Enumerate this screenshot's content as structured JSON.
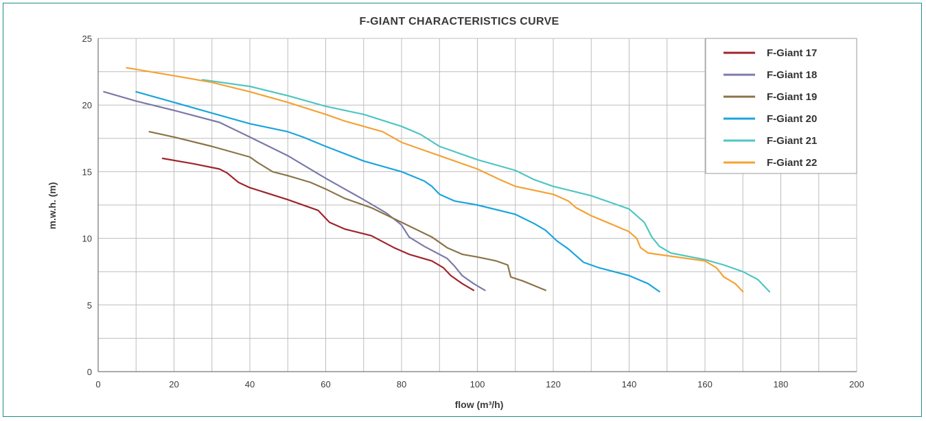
{
  "chart_data": {
    "type": "line",
    "title": "F-GIANT  CHARACTERISTICS CURVE",
    "xlabel": "flow (m³/h)",
    "ylabel": "m.w.h. (m)",
    "xlim": [
      0,
      200
    ],
    "ylim": [
      0,
      25
    ],
    "x_ticks": [
      0,
      20,
      40,
      60,
      80,
      100,
      120,
      140,
      160,
      180,
      200
    ],
    "y_ticks": [
      0,
      5,
      10,
      15,
      20,
      25
    ],
    "grid": true,
    "legend_position": "top-right",
    "series": [
      {
        "name": "F-Giant  17",
        "color": "#a0232b",
        "points": [
          [
            17,
            16
          ],
          [
            25,
            15.6
          ],
          [
            32,
            15.2
          ],
          [
            34,
            14.9
          ],
          [
            37,
            14.2
          ],
          [
            40,
            13.8
          ],
          [
            50,
            12.9
          ],
          [
            58,
            12.1
          ],
          [
            61,
            11.2
          ],
          [
            65,
            10.7
          ],
          [
            72,
            10.2
          ],
          [
            78,
            9.3
          ],
          [
            82,
            8.8
          ],
          [
            88,
            8.3
          ],
          [
            91,
            7.8
          ],
          [
            93,
            7.2
          ],
          [
            96,
            6.6
          ],
          [
            99,
            6.1
          ]
        ]
      },
      {
        "name": "F-Giant  18",
        "color": "#7b79a8",
        "points": [
          [
            1.5,
            21
          ],
          [
            10,
            20.3
          ],
          [
            20,
            19.6
          ],
          [
            32,
            18.7
          ],
          [
            40,
            17.6
          ],
          [
            50,
            16.2
          ],
          [
            60,
            14.5
          ],
          [
            70,
            12.9
          ],
          [
            76,
            11.9
          ],
          [
            80,
            11
          ],
          [
            82,
            10.1
          ],
          [
            86,
            9.4
          ],
          [
            92,
            8.5
          ],
          [
            94,
            7.9
          ],
          [
            96,
            7.2
          ],
          [
            99,
            6.6
          ],
          [
            102,
            6.1
          ]
        ]
      },
      {
        "name": "F-Giant  19",
        "color": "#8a7347",
        "points": [
          [
            13.5,
            18
          ],
          [
            20,
            17.6
          ],
          [
            30,
            16.9
          ],
          [
            40,
            16.1
          ],
          [
            42,
            15.7
          ],
          [
            46,
            15.0
          ],
          [
            50,
            14.7
          ],
          [
            56,
            14.2
          ],
          [
            60,
            13.7
          ],
          [
            65,
            13.0
          ],
          [
            72,
            12.3
          ],
          [
            80,
            11.2
          ],
          [
            88,
            10.1
          ],
          [
            92,
            9.3
          ],
          [
            96,
            8.8
          ],
          [
            100,
            8.6
          ],
          [
            105,
            8.3
          ],
          [
            108,
            8.0
          ],
          [
            108.8,
            7.1
          ],
          [
            112,
            6.8
          ],
          [
            118,
            6.1
          ]
        ]
      },
      {
        "name": "F-Giant  20",
        "color": "#1aa4df",
        "points": [
          [
            10,
            21
          ],
          [
            20,
            20.2
          ],
          [
            30,
            19.4
          ],
          [
            40,
            18.6
          ],
          [
            50,
            18
          ],
          [
            54,
            17.6
          ],
          [
            60,
            16.9
          ],
          [
            70,
            15.8
          ],
          [
            80,
            15
          ],
          [
            86,
            14.3
          ],
          [
            88,
            13.9
          ],
          [
            90,
            13.3
          ],
          [
            94,
            12.8
          ],
          [
            100,
            12.5
          ],
          [
            110,
            11.8
          ],
          [
            115,
            11.1
          ],
          [
            118,
            10.6
          ],
          [
            121,
            9.8
          ],
          [
            124,
            9.2
          ],
          [
            128,
            8.2
          ],
          [
            132,
            7.8
          ],
          [
            140,
            7.2
          ],
          [
            145,
            6.6
          ],
          [
            148,
            6
          ]
        ]
      },
      {
        "name": "F-Giant  21",
        "color": "#4ec6c2",
        "points": [
          [
            27.5,
            21.9
          ],
          [
            40,
            21.4
          ],
          [
            50,
            20.7
          ],
          [
            60,
            19.9
          ],
          [
            70,
            19.3
          ],
          [
            80,
            18.4
          ],
          [
            85,
            17.8
          ],
          [
            90,
            16.9
          ],
          [
            100,
            15.9
          ],
          [
            110,
            15.1
          ],
          [
            115,
            14.4
          ],
          [
            120,
            13.9
          ],
          [
            130,
            13.2
          ],
          [
            140,
            12.2
          ],
          [
            144,
            11.2
          ],
          [
            146,
            10.1
          ],
          [
            148,
            9.4
          ],
          [
            151,
            8.9
          ],
          [
            160,
            8.4
          ],
          [
            165,
            8.0
          ],
          [
            170,
            7.5
          ],
          [
            174,
            6.9
          ],
          [
            177,
            6.0
          ]
        ]
      },
      {
        "name": "F-Giant  22",
        "color": "#f4a233",
        "points": [
          [
            7.5,
            22.8
          ],
          [
            20,
            22.2
          ],
          [
            30,
            21.7
          ],
          [
            40,
            21.0
          ],
          [
            50,
            20.2
          ],
          [
            60,
            19.3
          ],
          [
            65,
            18.8
          ],
          [
            70,
            18.4
          ],
          [
            75,
            18
          ],
          [
            80,
            17.2
          ],
          [
            85,
            16.7
          ],
          [
            90,
            16.2
          ],
          [
            100,
            15.2
          ],
          [
            106,
            14.4
          ],
          [
            110,
            13.9
          ],
          [
            120,
            13.3
          ],
          [
            124,
            12.8
          ],
          [
            126,
            12.3
          ],
          [
            130,
            11.7
          ],
          [
            135,
            11.1
          ],
          [
            140,
            10.5
          ],
          [
            142,
            10.0
          ],
          [
            143,
            9.3
          ],
          [
            145,
            8.9
          ],
          [
            150,
            8.7
          ],
          [
            160,
            8.3
          ],
          [
            163,
            7.8
          ],
          [
            165,
            7.1
          ],
          [
            168,
            6.6
          ],
          [
            170,
            6.0
          ]
        ]
      }
    ]
  }
}
